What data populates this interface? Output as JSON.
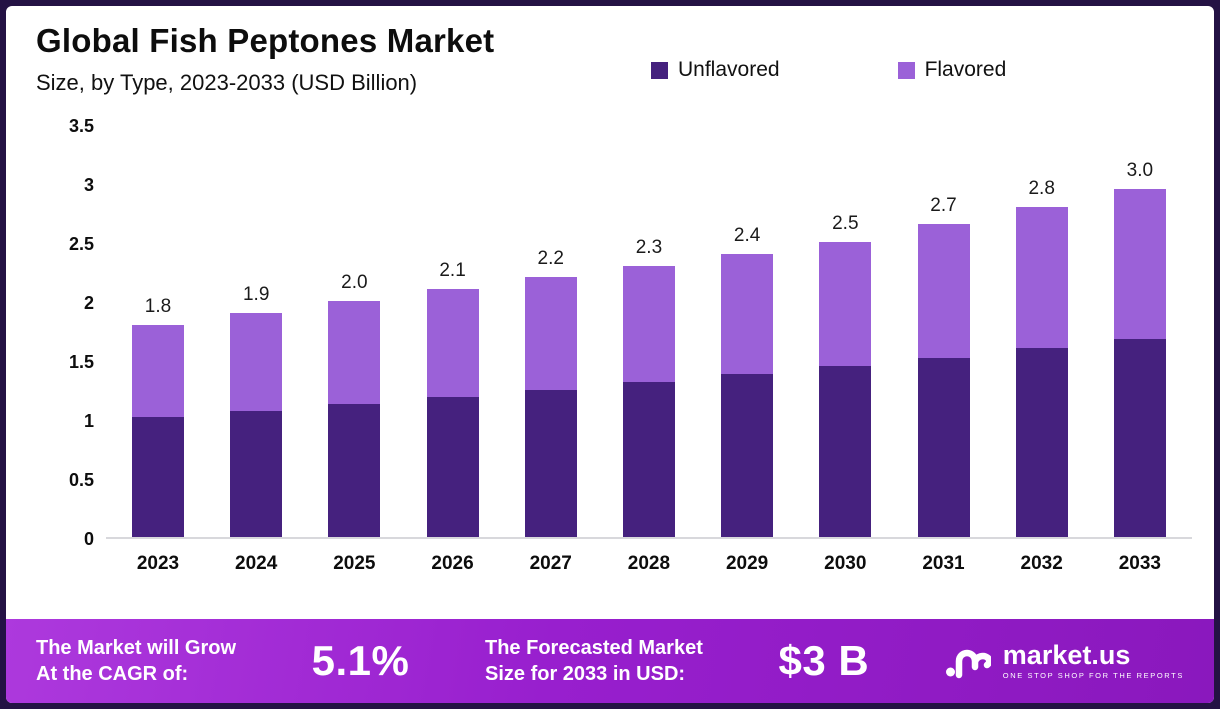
{
  "header": {
    "title": "Global Fish Peptones Market",
    "subtitle": "Size, by Type, 2023-2033 (USD Billion)"
  },
  "colors": {
    "unflavored": "#45217E",
    "flavored": "#9B61D8",
    "banner_start": "#AD39DD",
    "banner_end": "#8A18BD",
    "frame_border": "#241244"
  },
  "chart_data": {
    "type": "bar",
    "stacked": true,
    "title": "Global Fish Peptones Market Size, by Type, 2023-2033 (USD Billion)",
    "categories": [
      "2023",
      "2024",
      "2025",
      "2026",
      "2027",
      "2028",
      "2029",
      "2030",
      "2031",
      "2032",
      "2033"
    ],
    "series": [
      {
        "name": "Unflavored",
        "color": "#45217E",
        "values": [
          1.02,
          1.07,
          1.13,
          1.19,
          1.25,
          1.31,
          1.38,
          1.45,
          1.52,
          1.6,
          1.68
        ]
      },
      {
        "name": "Flavored",
        "color": "#9B61D8",
        "values": [
          0.78,
          0.83,
          0.87,
          0.91,
          0.95,
          0.99,
          1.02,
          1.05,
          1.13,
          1.2,
          1.27
        ]
      }
    ],
    "total_labels": [
      "1.8",
      "1.9",
      "2.0",
      "2.1",
      "2.2",
      "2.3",
      "2.4",
      "2.5",
      "2.7",
      "2.8",
      "3.0"
    ],
    "y_ticks": [
      3.5,
      3,
      2.5,
      2,
      1.5,
      1,
      0.5,
      0
    ],
    "ylim": [
      0,
      3.5
    ],
    "grid": false,
    "legend_position": "top-right"
  },
  "legend": [
    {
      "label": "Unflavored",
      "color": "#45217E"
    },
    {
      "label": "Flavored",
      "color": "#9B61D8"
    }
  ],
  "banner": {
    "cagr_label_line1": "The Market will Grow",
    "cagr_label_line2": "At the CAGR of:",
    "cagr_value": "5.1%",
    "forecast_label_line1": "The Forecasted Market",
    "forecast_label_line2": "Size for 2033 in USD:",
    "forecast_value": "$3 B",
    "logo_text": "market.us",
    "logo_tagline": "ONE STOP SHOP FOR THE REPORTS"
  }
}
